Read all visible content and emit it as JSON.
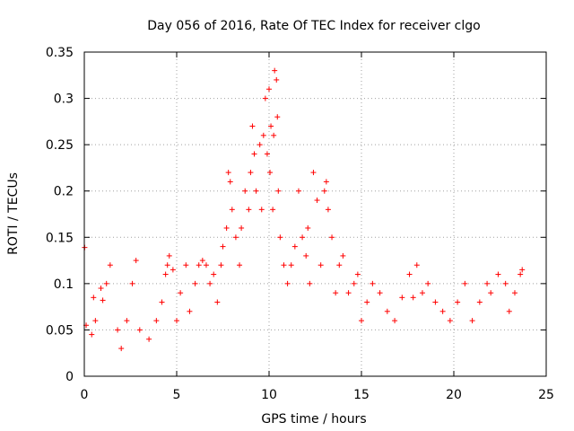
{
  "chart_data": {
    "type": "scatter",
    "title": "Day 056 of 2016, Rate Of TEC Index for receiver clgo",
    "xlabel": "GPS time / hours",
    "ylabel": "ROTI / TECUs",
    "xlim": [
      0,
      25
    ],
    "ylim": [
      0,
      0.35
    ],
    "xticks": [
      0,
      5,
      10,
      15,
      20,
      25
    ],
    "yticks": [
      0,
      0.05,
      0.1,
      0.15,
      0.2,
      0.25,
      0.3,
      0.35
    ],
    "ytick_labels": [
      "0",
      "0.05",
      "0.1",
      "0.15",
      "0.2",
      "0.25",
      "0.3",
      "0.35"
    ],
    "grid": true,
    "marker": "+",
    "color": "#ff0000",
    "series": [
      {
        "x": [
          0.02,
          0.1,
          0.4,
          0.5,
          0.6,
          0.9,
          1.0,
          1.2,
          1.4,
          1.8,
          2.0,
          2.3,
          2.6,
          2.8,
          3.0,
          3.5,
          3.9,
          4.2,
          4.4,
          4.5,
          4.6,
          4.8,
          5.0,
          5.2,
          5.5,
          5.7,
          6.0,
          6.2,
          6.4,
          6.6,
          6.8,
          7.0,
          7.2,
          7.4,
          7.5,
          7.7,
          7.8,
          7.9,
          8.0,
          8.2,
          8.4,
          8.5,
          8.7,
          8.9,
          9.0,
          9.1,
          9.2,
          9.3,
          9.5,
          9.6,
          9.7,
          9.8,
          9.9,
          10.0,
          10.05,
          10.1,
          10.2,
          10.25,
          10.3,
          10.4,
          10.45,
          10.5,
          10.6,
          10.8,
          11.0,
          11.2,
          11.4,
          11.6,
          11.8,
          12.0,
          12.1,
          12.2,
          12.4,
          12.6,
          12.8,
          13.0,
          13.1,
          13.2,
          13.4,
          13.6,
          13.8,
          14.0,
          14.3,
          14.6,
          14.8,
          15.0,
          15.3,
          15.6,
          16.0,
          16.4,
          16.8,
          17.2,
          17.6,
          17.8,
          18.0,
          18.3,
          18.6,
          19.0,
          19.4,
          19.8,
          20.2,
          20.6,
          21.0,
          21.4,
          21.8,
          22.0,
          22.4,
          22.8,
          23.0,
          23.3,
          23.6,
          23.7
        ],
        "y": [
          0.139,
          0.055,
          0.045,
          0.085,
          0.06,
          0.095,
          0.082,
          0.1,
          0.12,
          0.05,
          0.03,
          0.06,
          0.1,
          0.125,
          0.05,
          0.04,
          0.06,
          0.08,
          0.11,
          0.12,
          0.13,
          0.115,
          0.06,
          0.09,
          0.12,
          0.07,
          0.1,
          0.12,
          0.125,
          0.12,
          0.1,
          0.11,
          0.08,
          0.12,
          0.14,
          0.16,
          0.22,
          0.21,
          0.18,
          0.15,
          0.12,
          0.16,
          0.2,
          0.18,
          0.22,
          0.27,
          0.24,
          0.2,
          0.25,
          0.18,
          0.26,
          0.3,
          0.24,
          0.31,
          0.22,
          0.27,
          0.18,
          0.26,
          0.33,
          0.32,
          0.28,
          0.2,
          0.15,
          0.12,
          0.1,
          0.12,
          0.14,
          0.2,
          0.15,
          0.13,
          0.16,
          0.1,
          0.22,
          0.19,
          0.12,
          0.2,
          0.21,
          0.18,
          0.15,
          0.09,
          0.12,
          0.13,
          0.09,
          0.1,
          0.11,
          0.06,
          0.08,
          0.1,
          0.09,
          0.07,
          0.06,
          0.085,
          0.11,
          0.085,
          0.12,
          0.09,
          0.1,
          0.08,
          0.07,
          0.06,
          0.08,
          0.1,
          0.06,
          0.08,
          0.1,
          0.09,
          0.11,
          0.1,
          0.07,
          0.09,
          0.11,
          0.115
        ]
      }
    ]
  }
}
